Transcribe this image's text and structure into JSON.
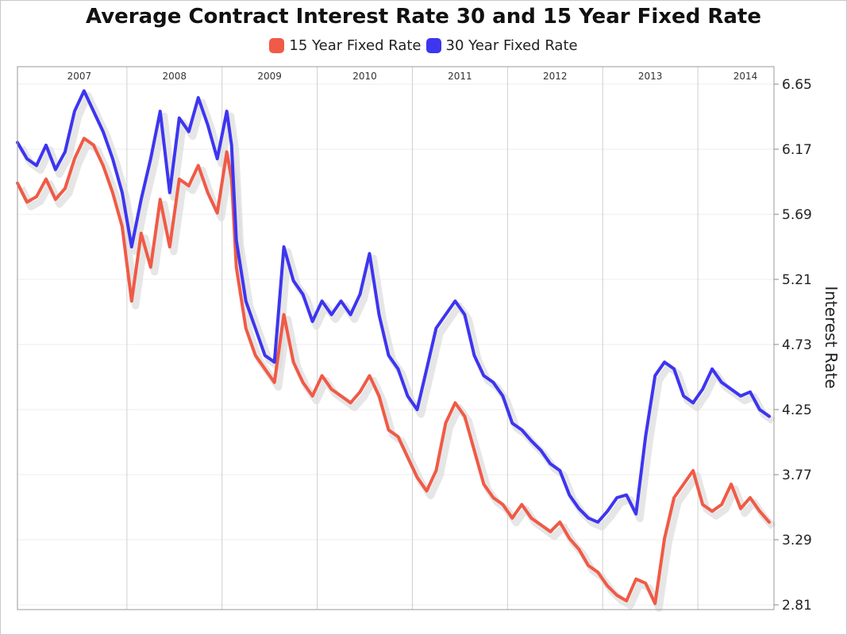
{
  "chart_data": {
    "type": "line",
    "title": "Average Contract Interest Rate 30 and 15 Year Fixed Rate",
    "ylabel": "Interest Rate",
    "xlabel": "",
    "year_labels": [
      {
        "label": "2007",
        "x": 2007.0
      },
      {
        "label": "2008",
        "x": 2008.0
      },
      {
        "label": "2009",
        "x": 2009.0
      },
      {
        "label": "2010",
        "x": 2010.0
      },
      {
        "label": "2011",
        "x": 2011.0
      },
      {
        "label": "2012",
        "x": 2012.0
      },
      {
        "label": "2013",
        "x": 2013.0
      },
      {
        "label": "2014",
        "x": 2014.0
      }
    ],
    "xlim": [
      2006.35,
      2014.3
    ],
    "ylim": [
      2.81,
      6.65
    ],
    "yticks": [
      6.65,
      6.17,
      5.69,
      5.21,
      4.73,
      4.25,
      3.77,
      3.29,
      2.81
    ],
    "ytick_labels": [
      "6.65",
      "6.17",
      "5.69",
      "5.21",
      "4.73",
      "4.25",
      "3.77",
      "3.29",
      "2.81"
    ],
    "grid": true,
    "legend_position": "top-center",
    "series": [
      {
        "name": "15 Year Fixed Rate",
        "color": "#f05a46",
        "x": [
          2006.35,
          2006.45,
          2006.55,
          2006.65,
          2006.75,
          2006.85,
          2006.95,
          2007.05,
          2007.15,
          2007.25,
          2007.35,
          2007.45,
          2007.55,
          2007.65,
          2007.75,
          2007.85,
          2007.95,
          2008.05,
          2008.15,
          2008.25,
          2008.35,
          2008.45,
          2008.55,
          2008.6,
          2008.65,
          2008.75,
          2008.85,
          2008.95,
          2009.05,
          2009.15,
          2009.25,
          2009.35,
          2009.45,
          2009.55,
          2009.65,
          2009.75,
          2009.85,
          2009.95,
          2010.05,
          2010.15,
          2010.25,
          2010.35,
          2010.45,
          2010.55,
          2010.65,
          2010.75,
          2010.85,
          2010.95,
          2011.05,
          2011.15,
          2011.25,
          2011.35,
          2011.45,
          2011.55,
          2011.65,
          2011.75,
          2011.85,
          2011.95,
          2012.05,
          2012.15,
          2012.25,
          2012.35,
          2012.45,
          2012.55,
          2012.65,
          2012.75,
          2012.85,
          2012.95,
          2013.05,
          2013.15,
          2013.25,
          2013.35,
          2013.45,
          2013.55,
          2013.65,
          2013.75,
          2013.85,
          2013.95,
          2014.05,
          2014.15,
          2014.25
        ],
        "values": [
          5.92,
          5.78,
          5.82,
          5.95,
          5.8,
          5.88,
          6.1,
          6.25,
          6.2,
          6.05,
          5.85,
          5.6,
          5.05,
          5.55,
          5.3,
          5.8,
          5.45,
          5.95,
          5.9,
          6.05,
          5.85,
          5.7,
          6.15,
          5.95,
          5.3,
          4.85,
          4.65,
          4.55,
          4.45,
          4.95,
          4.6,
          4.45,
          4.35,
          4.5,
          4.4,
          4.35,
          4.3,
          4.38,
          4.5,
          4.35,
          4.1,
          4.05,
          3.9,
          3.75,
          3.65,
          3.8,
          4.15,
          4.3,
          4.2,
          3.95,
          3.7,
          3.6,
          3.55,
          3.45,
          3.55,
          3.45,
          3.4,
          3.35,
          3.42,
          3.3,
          3.22,
          3.1,
          3.05,
          2.95,
          2.88,
          2.84,
          3.0,
          2.97,
          2.82,
          3.3,
          3.6,
          3.7,
          3.8,
          3.55,
          3.5,
          3.55,
          3.7,
          3.52,
          3.6,
          3.5,
          3.42
        ]
      },
      {
        "name": "30 Year Fixed Rate",
        "color": "#3d35f0",
        "x": [
          2006.35,
          2006.45,
          2006.55,
          2006.65,
          2006.75,
          2006.85,
          2006.95,
          2007.05,
          2007.15,
          2007.25,
          2007.35,
          2007.45,
          2007.55,
          2007.65,
          2007.75,
          2007.85,
          2007.95,
          2008.05,
          2008.15,
          2008.25,
          2008.35,
          2008.45,
          2008.55,
          2008.6,
          2008.65,
          2008.75,
          2008.85,
          2008.95,
          2009.05,
          2009.15,
          2009.25,
          2009.35,
          2009.45,
          2009.55,
          2009.65,
          2009.75,
          2009.85,
          2009.95,
          2010.05,
          2010.15,
          2010.25,
          2010.35,
          2010.45,
          2010.55,
          2010.65,
          2010.75,
          2010.85,
          2010.95,
          2011.05,
          2011.15,
          2011.25,
          2011.35,
          2011.45,
          2011.55,
          2011.65,
          2011.75,
          2011.85,
          2011.95,
          2012.05,
          2012.15,
          2012.25,
          2012.35,
          2012.45,
          2012.55,
          2012.65,
          2012.75,
          2012.85,
          2012.95,
          2013.05,
          2013.15,
          2013.25,
          2013.35,
          2013.45,
          2013.55,
          2013.65,
          2013.75,
          2013.85,
          2013.95,
          2014.05,
          2014.15,
          2014.25
        ],
        "values": [
          6.22,
          6.1,
          6.05,
          6.2,
          6.02,
          6.15,
          6.45,
          6.6,
          6.45,
          6.3,
          6.1,
          5.85,
          5.45,
          5.8,
          6.1,
          6.45,
          5.85,
          6.4,
          6.3,
          6.55,
          6.35,
          6.1,
          6.45,
          6.2,
          5.5,
          5.05,
          4.85,
          4.65,
          4.6,
          5.45,
          5.2,
          5.1,
          4.9,
          5.05,
          4.95,
          5.05,
          4.95,
          5.1,
          5.4,
          4.95,
          4.65,
          4.55,
          4.35,
          4.25,
          4.55,
          4.85,
          4.95,
          5.05,
          4.95,
          4.65,
          4.5,
          4.45,
          4.35,
          4.15,
          4.1,
          4.02,
          3.95,
          3.85,
          3.8,
          3.62,
          3.52,
          3.45,
          3.42,
          3.5,
          3.6,
          3.62,
          3.48,
          4.05,
          4.5,
          4.6,
          4.55,
          4.35,
          4.3,
          4.4,
          4.55,
          4.45,
          4.4,
          4.35,
          4.38,
          4.25,
          4.2
        ]
      }
    ]
  }
}
